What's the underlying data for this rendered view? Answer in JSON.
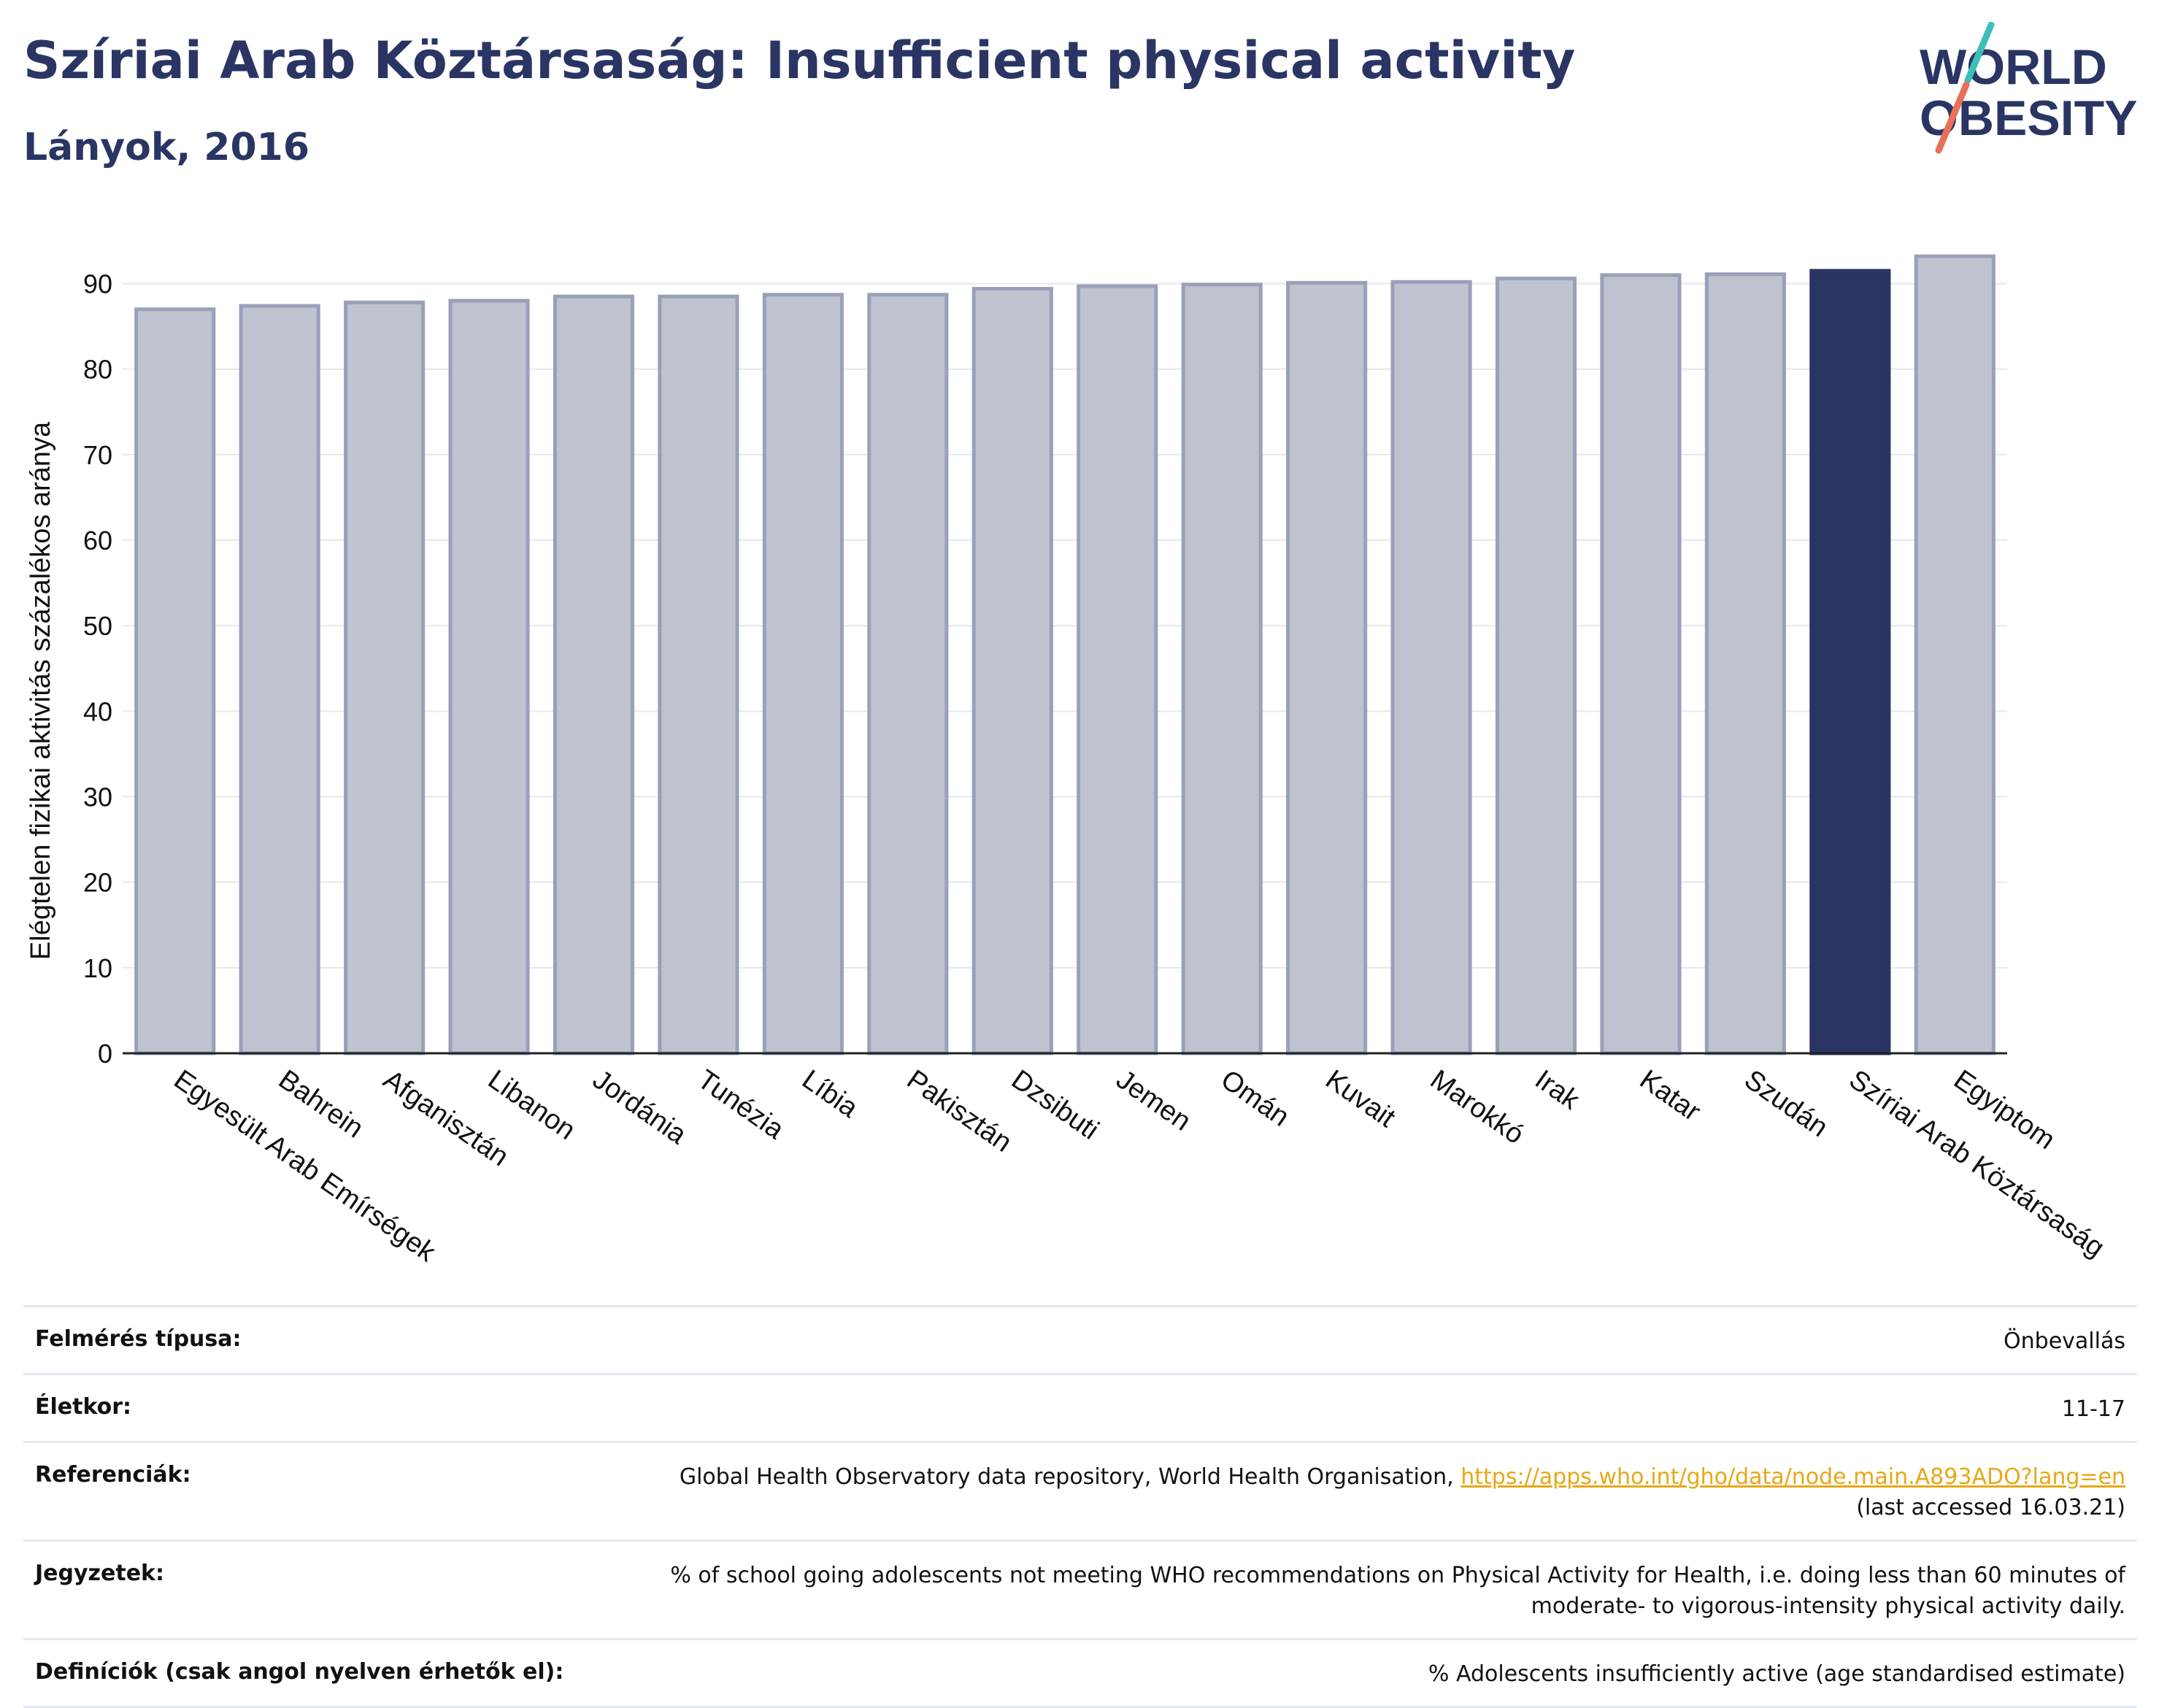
{
  "header": {
    "title": "Szíriai Arab Köztársaság: Insufficient physical activity",
    "subtitle": "Lányok, 2016"
  },
  "logo": {
    "line1": "WORLD",
    "line2": "OBESITY",
    "slash_colors": [
      "#3dbfb8",
      "#e8705a"
    ]
  },
  "chart_data": {
    "type": "bar",
    "title": "",
    "xlabel": "",
    "ylabel": "Elégtelen fizikai aktivitás százalékos aránya",
    "ylim": [
      0,
      95
    ],
    "yticks": [
      0,
      10,
      20,
      30,
      40,
      50,
      60,
      70,
      80,
      90
    ],
    "grid": true,
    "highlight": "Szíriai Arab Köztársaság",
    "colors": {
      "bar": "#bfc2cf",
      "bar_border": "#9aa0b8",
      "highlight": "#2a3564",
      "grid": "#e6e8ee",
      "axis": "#222222"
    },
    "categories": [
      "Egyesült Arab Emírségek",
      "Bahrein",
      "Afganisztán",
      "Libanon",
      "Jordánia",
      "Tunézia",
      "Líbia",
      "Pakisztán",
      "Dzsibuti",
      "Jemen",
      "Omán",
      "Kuvait",
      "Marokkó",
      "Irak",
      "Katar",
      "Szudán",
      "Szíriai Arab Köztársaság",
      "Egyiptom"
    ],
    "values": [
      87.0,
      87.4,
      87.8,
      88.0,
      88.5,
      88.5,
      88.7,
      88.7,
      89.4,
      89.7,
      89.9,
      90.1,
      90.2,
      90.6,
      91.0,
      91.1,
      91.5,
      93.2
    ]
  },
  "meta": [
    {
      "label": "Felmérés típusa:",
      "value": "Önbevallás"
    },
    {
      "label": "Életkor:",
      "value": "11-17"
    },
    {
      "label": "Referenciák:",
      "value": "Global Health Observatory data repository, World Health Organisation,",
      "link": "https://apps.who.int/gho/data/node.main.A893ADO?lang=en",
      "value2": "(last accessed 16.03.21)"
    },
    {
      "label": "Jegyzetek:",
      "value": "% of school going adolescents not meeting WHO recommendations on Physical Activity for Health, i.e. doing less than 60 minutes of moderate- to vigorous-intensity physical activity daily."
    },
    {
      "label": "Definíciók (csak angol nyelven érhetők el):",
      "value": "% Adolescents insufficiently active (age standardised estimate)"
    }
  ]
}
